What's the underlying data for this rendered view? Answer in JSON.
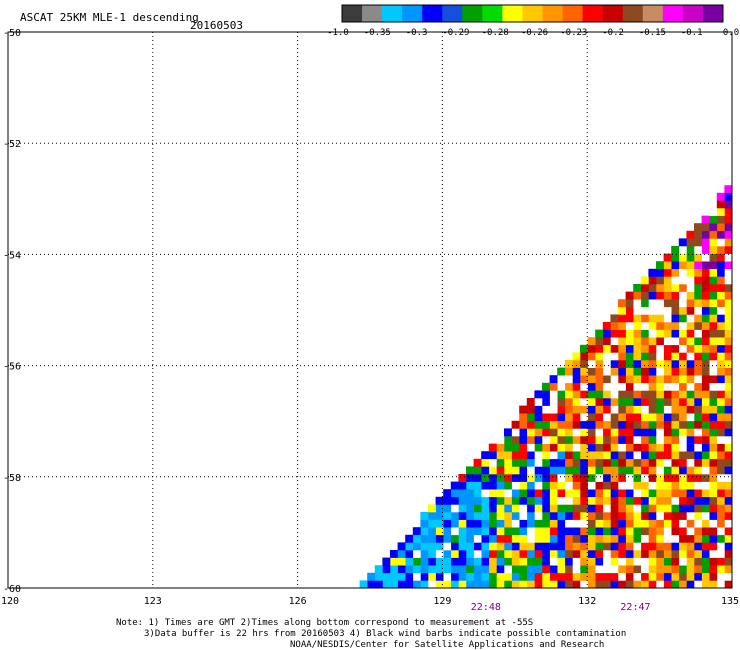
{
  "header": {
    "title": "ASCAT 25KM MLE-1 descending",
    "date": "20160503"
  },
  "colorbar": {
    "colors": [
      "#3c3c3c",
      "#8a8a8a",
      "#00c8ff",
      "#0096ff",
      "#0000ff",
      "#1450dc",
      "#00a000",
      "#00dc00",
      "#ffff00",
      "#ffc800",
      "#ff9600",
      "#ff6400",
      "#ff0000",
      "#c80000",
      "#8c4a1e",
      "#c88c64",
      "#ff00ff",
      "#c800c8",
      "#7800a0"
    ],
    "tick_labels": [
      "-1.0",
      "-0.35",
      "-0.3",
      "-0.29",
      "-0.28",
      "-0.26",
      "-0.23",
      "-0.2",
      "-0.15",
      "-0.1",
      "0.0"
    ]
  },
  "chart_data": {
    "type": "heatmap",
    "title": "ASCAT 25KM MLE-1 descending",
    "xlabel": "",
    "ylabel": "",
    "xlim": [
      120,
      135
    ],
    "ylim": [
      -60,
      -50
    ],
    "x_ticks": [
      120,
      123,
      126,
      129,
      132,
      135
    ],
    "y_ticks": [
      -50,
      -52,
      -54,
      -56,
      -58,
      -60
    ],
    "x_tick_labels": [
      "120",
      "123",
      "126",
      "129",
      "132",
      "135"
    ],
    "y_tick_labels": [
      "-50",
      "-52",
      "-54",
      "-56",
      "-58",
      "-60"
    ],
    "grid": true,
    "swath_edge": [
      [
        127.2,
        -60
      ],
      [
        135,
        -52.7
      ]
    ],
    "time_labels": [
      {
        "x": 129.9,
        "text": "22:48"
      },
      {
        "x": 133.0,
        "text": "22:47"
      }
    ],
    "time_label_color": "#800080",
    "regions": [
      {
        "name": "blue-west",
        "lon_max": 129.9,
        "lat_max": -58.1,
        "dominant": [
          "#0096ff",
          "#0000ff",
          "#00c8ff"
        ],
        "value_range": [
          -0.35,
          -0.29
        ]
      },
      {
        "name": "mixed-south",
        "lon_max": 131.5,
        "lat_max": -57.5,
        "dominant": [
          "#00a000",
          "#0000ff",
          "#ffff00"
        ],
        "value_range": [
          -0.3,
          -0.26
        ]
      },
      {
        "name": "warm-east",
        "lon_max": 135,
        "lat_max": -52.7,
        "dominant": [
          "#ff0000",
          "#ffc800",
          "#ff6400",
          "#ffff00"
        ],
        "value_range": [
          -0.26,
          -0.2
        ]
      },
      {
        "name": "purple-northeast",
        "lon_min": 134.2,
        "lat_min": -54.2,
        "dominant": [
          "#ff00ff",
          "#7800a0",
          "#8c4a1e"
        ],
        "value_range": [
          -0.15,
          0.0
        ]
      }
    ]
  },
  "footer": {
    "line1": "Note: 1) Times are GMT 2)Times along bottom correspond to measurement at -55S",
    "line2": "3)Data buffer is 22 hrs from 20160503 4) Black wind barbs indicate possible contamination",
    "line3": "NOAA/NESDIS/Center for Satellite Applications and Research"
  }
}
